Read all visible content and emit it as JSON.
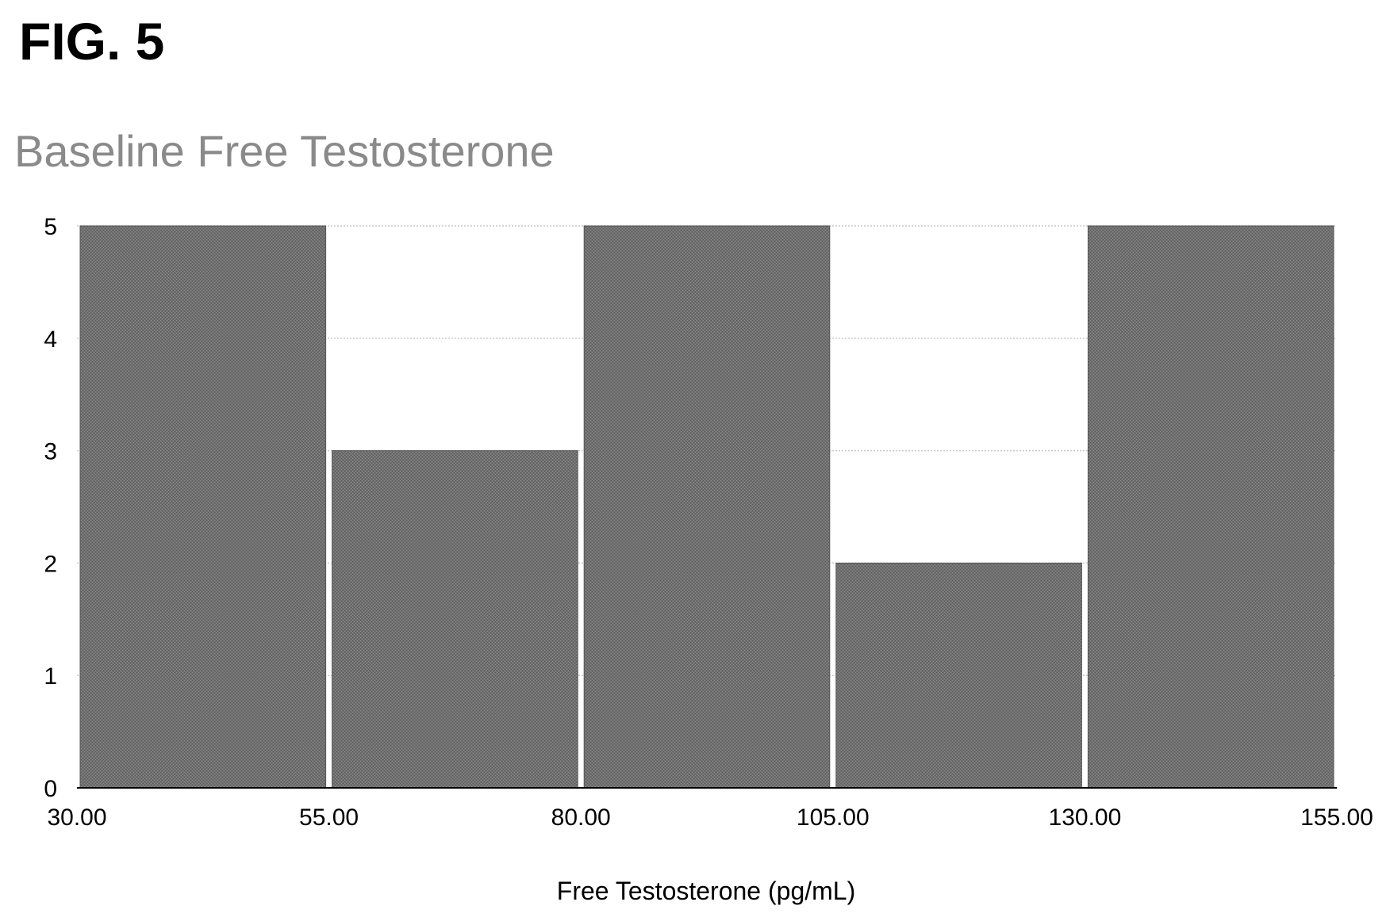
{
  "figure": {
    "label": "FIG. 5"
  },
  "chart_data": {
    "type": "bar",
    "title": "Baseline Free Testosterone",
    "xlabel": "Free Testosterone (pg/mL)",
    "ylabel": "",
    "bins": [
      {
        "from": 30.0,
        "to": 55.0,
        "value": 5
      },
      {
        "from": 55.0,
        "to": 80.0,
        "value": 3
      },
      {
        "from": 80.0,
        "to": 105.0,
        "value": 5
      },
      {
        "from": 105.0,
        "to": 130.0,
        "value": 2
      },
      {
        "from": 130.0,
        "to": 155.0,
        "value": 5
      }
    ],
    "x_ticks": [
      "30.00",
      "55.00",
      "80.00",
      "105.00",
      "130.00",
      "155.00"
    ],
    "y_ticks": [
      "0",
      "1",
      "2",
      "3",
      "4",
      "5"
    ],
    "xlim": [
      30,
      155
    ],
    "ylim": [
      0,
      5
    ],
    "grid": true,
    "legend": "none",
    "colors": {
      "bar": "#6e6e6e",
      "grid": "#c8c8c8",
      "title": "#8a8a8a"
    }
  }
}
